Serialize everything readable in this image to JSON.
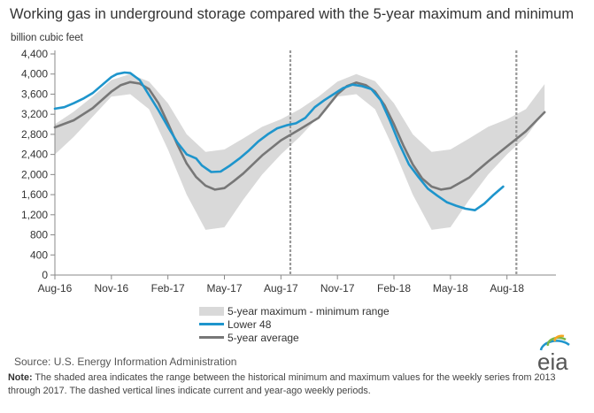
{
  "title": "Working gas in underground  storage compared with the 5-year maximum and minimum",
  "unit_label": "billion cubic feet",
  "legend": {
    "range": "5-year maximum - minimum range",
    "lower48": "Lower 48",
    "average": "5-year average"
  },
  "source": "Source:  U.S. Energy Information Administration",
  "note_label": "Note:",
  "note_text": " The shaded area indicates the range between the historical minimum and maximum values for the weekly series from 2013 through 2017. The dashed vertical lines indicate current and year-ago weekly periods.",
  "logo_text": "eia",
  "colors": {
    "lower48": "#1e95cc",
    "average": "#777777",
    "range": "#d9d9d9",
    "axis": "#888888"
  },
  "chart_data": {
    "type": "line",
    "title": "Working gas in underground  storage compared with the 5-year maximum and minimum",
    "ylabel": "billion cubic feet",
    "ylim": [
      0,
      4400
    ],
    "yticks": [
      0,
      400,
      800,
      1200,
      1600,
      2000,
      2400,
      2800,
      3200,
      3600,
      4000,
      4400
    ],
    "xlim": [
      0,
      26.6
    ],
    "xtick_positions": [
      0,
      3,
      6,
      9,
      12,
      15,
      18,
      21,
      24
    ],
    "xtick_labels": [
      "Aug-16",
      "Nov-16",
      "Feb-17",
      "May-17",
      "Aug-17",
      "Nov-17",
      "Feb-18",
      "May-18",
      "Aug-18"
    ],
    "x_unit": "months since Aug-16",
    "grid": false,
    "legend_position": "bottom",
    "vlines": [
      12.5,
      24.5
    ],
    "series": [
      {
        "name": "Lower 48",
        "x": [
          0,
          0.5,
          1,
          1.5,
          2,
          2.5,
          3,
          3.3,
          3.7,
          4,
          4.5,
          5,
          5.5,
          6,
          6.5,
          7,
          7.5,
          7.8,
          8.3,
          8.8,
          9.3,
          9.8,
          10.3,
          10.8,
          11.3,
          11.8,
          12.3,
          12.8,
          13.3,
          13.8,
          14.3,
          14.8,
          15.3,
          15.8,
          16.3,
          16.8,
          17.3,
          17.8,
          18.3,
          18.8,
          19.3,
          19.8,
          20.3,
          20.8,
          21.3,
          21.8,
          22.3,
          22.8,
          23.3,
          23.8
        ],
        "y": [
          3310,
          3340,
          3420,
          3510,
          3620,
          3780,
          3940,
          4000,
          4030,
          4020,
          3880,
          3580,
          3280,
          2950,
          2640,
          2400,
          2320,
          2180,
          2050,
          2060,
          2180,
          2320,
          2480,
          2660,
          2800,
          2920,
          2980,
          3020,
          3130,
          3340,
          3480,
          3600,
          3720,
          3790,
          3760,
          3700,
          3480,
          3060,
          2600,
          2200,
          1950,
          1720,
          1580,
          1450,
          1380,
          1320,
          1290,
          1420,
          1600,
          1760
        ]
      },
      {
        "name": "5-year average",
        "x": [
          0,
          1,
          2,
          3,
          3.5,
          4,
          4.5,
          5,
          5.5,
          6,
          6.5,
          7,
          7.5,
          8,
          8.5,
          9,
          9.5,
          10,
          11,
          12,
          13,
          14,
          14.5,
          15,
          15.5,
          16,
          16.5,
          17,
          17.5,
          18,
          18.5,
          19,
          19.5,
          20,
          20.5,
          21,
          22,
          23,
          24,
          25,
          26
        ],
        "y": [
          2940,
          3080,
          3320,
          3650,
          3780,
          3840,
          3810,
          3700,
          3420,
          3020,
          2600,
          2220,
          1950,
          1780,
          1700,
          1730,
          1870,
          2020,
          2380,
          2680,
          2900,
          3130,
          3360,
          3600,
          3760,
          3830,
          3780,
          3650,
          3380,
          3000,
          2580,
          2200,
          1920,
          1760,
          1700,
          1730,
          1940,
          2260,
          2560,
          2860,
          3240
        ]
      },
      {
        "name": "5-year maximum",
        "x": [
          0,
          1,
          2,
          3,
          4,
          5,
          6,
          7,
          8,
          9,
          10,
          11,
          12,
          13,
          14,
          15,
          16,
          17,
          18,
          19,
          20,
          21,
          22,
          23,
          24,
          25,
          26
        ],
        "y": [
          3000,
          3250,
          3550,
          3880,
          4000,
          3850,
          3420,
          2800,
          2450,
          2500,
          2720,
          2950,
          3100,
          3300,
          3550,
          3850,
          4000,
          3860,
          3420,
          2800,
          2450,
          2500,
          2720,
          2950,
          3100,
          3300,
          3800
        ]
      },
      {
        "name": "5-year minimum",
        "x": [
          0,
          1,
          2,
          3,
          4,
          5,
          6,
          7,
          8,
          9,
          10,
          11,
          12,
          13,
          14,
          15,
          16,
          17,
          18,
          19,
          20,
          21,
          22,
          23,
          24,
          25,
          26
        ],
        "y": [
          2400,
          2750,
          3150,
          3550,
          3600,
          3300,
          2500,
          1600,
          900,
          950,
          1500,
          2000,
          2400,
          2750,
          3150,
          3550,
          3600,
          3300,
          2500,
          1600,
          900,
          950,
          1500,
          2000,
          2400,
          2750,
          3250
        ]
      }
    ]
  }
}
